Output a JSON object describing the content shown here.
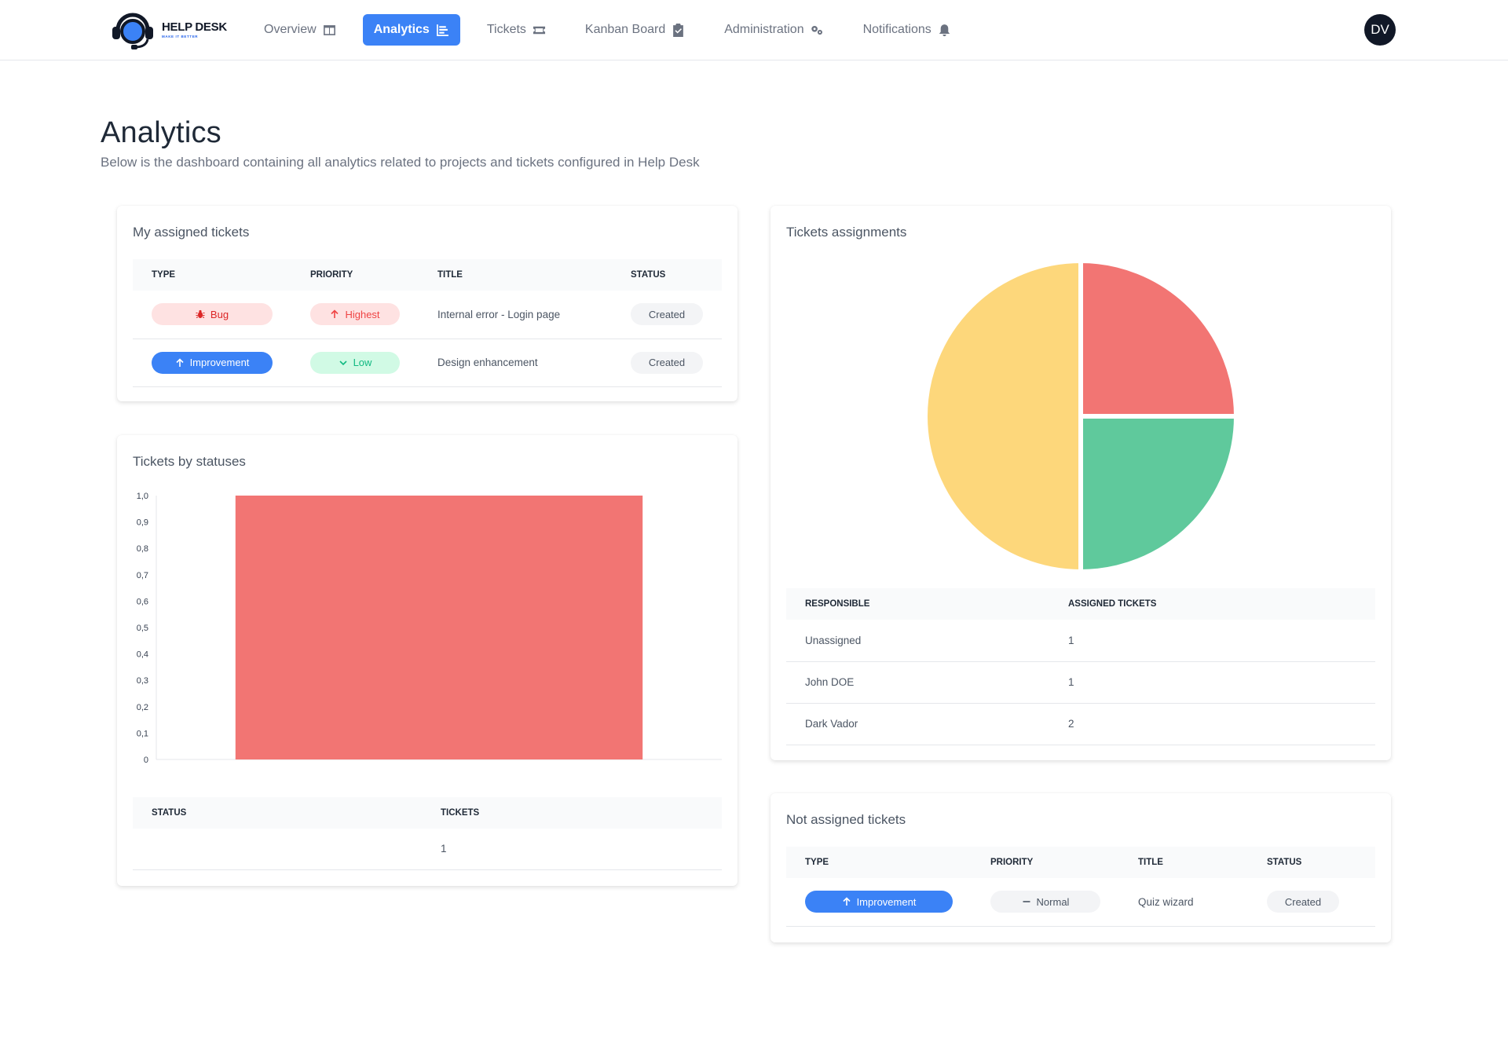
{
  "brand": {
    "title": "HELP DESK",
    "tagline": "MAKE IT BETTER"
  },
  "nav": [
    {
      "label": "Overview",
      "icon": "columns-icon"
    },
    {
      "label": "Analytics",
      "icon": "chart-bar-icon",
      "active": true
    },
    {
      "label": "Tickets",
      "icon": "ticket-icon"
    },
    {
      "label": "Kanban Board",
      "icon": "clipboard-check-icon"
    },
    {
      "label": "Administration",
      "icon": "cogs-icon"
    },
    {
      "label": "Notifications",
      "icon": "bell-icon"
    }
  ],
  "user": {
    "initials": "DV"
  },
  "page": {
    "title": "Analytics",
    "subtitle": "Below is the dashboard containing all analytics related to projects and tickets configured in Help Desk"
  },
  "my_assigned": {
    "title": "My assigned tickets",
    "columns": [
      "TYPE",
      "PRIORITY",
      "TITLE",
      "STATUS"
    ],
    "rows": [
      {
        "type": "Bug",
        "type_icon": "bug-icon",
        "priority": "Highest",
        "priority_icon": "arrow-up-icon",
        "title": "Internal error - Login page",
        "status": "Created"
      },
      {
        "type": "Improvement",
        "type_icon": "arrow-up-icon",
        "priority": "Low",
        "priority_icon": "chevron-down-icon",
        "title": "Design enhancement",
        "status": "Created"
      }
    ]
  },
  "by_status": {
    "title": "Tickets by statuses",
    "columns": [
      "STATUS",
      "TICKETS"
    ],
    "rows": [
      {
        "status": "",
        "tickets": "1"
      }
    ]
  },
  "assignments": {
    "title": "Tickets assignments",
    "columns": [
      "RESPONSIBLE",
      "ASSIGNED TICKETS"
    ],
    "rows": [
      {
        "responsible": "Unassigned",
        "count": "1"
      },
      {
        "responsible": "John DOE",
        "count": "1"
      },
      {
        "responsible": "Dark Vador",
        "count": "2"
      }
    ]
  },
  "not_assigned": {
    "title": "Not assigned tickets",
    "columns": [
      "TYPE",
      "PRIORITY",
      "TITLE",
      "STATUS"
    ],
    "rows": [
      {
        "type": "Improvement",
        "type_icon": "arrow-up-icon",
        "priority": "Normal",
        "priority_icon": "minus-icon",
        "title": "Quiz wizard",
        "status": "Created"
      }
    ]
  },
  "colors": {
    "accent": "#3b82f6",
    "red": "#f27573",
    "green": "#5fc99c",
    "yellow": "#fdd77b"
  },
  "chart_data": [
    {
      "type": "bar",
      "categories": [
        ""
      ],
      "values": [
        1
      ],
      "ylim": [
        0,
        1
      ],
      "yticks": [
        "0",
        "0,1",
        "0,2",
        "0,3",
        "0,4",
        "0,5",
        "0,6",
        "0,7",
        "0,8",
        "0,9",
        "1,0"
      ],
      "grid": false,
      "color": "#f27573"
    },
    {
      "type": "pie",
      "labels": [
        "John DOE",
        "Unassigned",
        "Dark Vador"
      ],
      "values": [
        1,
        1,
        2
      ],
      "colors": [
        "#f27573",
        "#5fc99c",
        "#fdd77b"
      ]
    }
  ]
}
